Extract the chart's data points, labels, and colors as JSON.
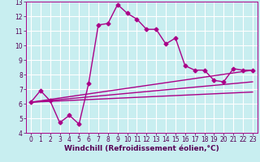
{
  "xlabel": "Windchill (Refroidissement éolien,°C)",
  "bg_color": "#c8eef0",
  "grid_color": "#ffffff",
  "line_color": "#aa0088",
  "xlim": [
    -0.5,
    23.5
  ],
  "ylim": [
    4,
    13
  ],
  "xticks": [
    0,
    1,
    2,
    3,
    4,
    5,
    6,
    7,
    8,
    9,
    10,
    11,
    12,
    13,
    14,
    15,
    16,
    17,
    18,
    19,
    20,
    21,
    22,
    23
  ],
  "yticks": [
    4,
    5,
    6,
    7,
    8,
    9,
    10,
    11,
    12,
    13
  ],
  "line1_x": [
    0,
    1,
    2,
    3,
    4,
    5,
    6,
    7,
    8,
    9,
    10,
    11,
    12,
    13,
    14,
    15,
    16,
    17,
    18,
    19,
    20,
    21,
    22,
    23
  ],
  "line1_y": [
    6.1,
    6.9,
    6.2,
    4.7,
    5.2,
    4.6,
    7.4,
    11.4,
    11.5,
    12.8,
    12.2,
    11.8,
    11.1,
    11.1,
    10.1,
    10.5,
    8.6,
    8.3,
    8.3,
    7.6,
    7.5,
    8.4,
    8.3,
    8.3
  ],
  "line2_x": [
    0,
    23
  ],
  "line2_y": [
    6.1,
    8.3
  ],
  "line3_x": [
    0,
    23
  ],
  "line3_y": [
    6.1,
    7.5
  ],
  "line4_x": [
    0,
    23
  ],
  "line4_y": [
    6.1,
    6.8
  ],
  "marker": "D",
  "markersize": 2.5,
  "linewidth": 1.0,
  "label_color": "#550055",
  "tick_color": "#550055",
  "tick_fontsize": 5.5,
  "xlabel_fontsize": 6.5
}
